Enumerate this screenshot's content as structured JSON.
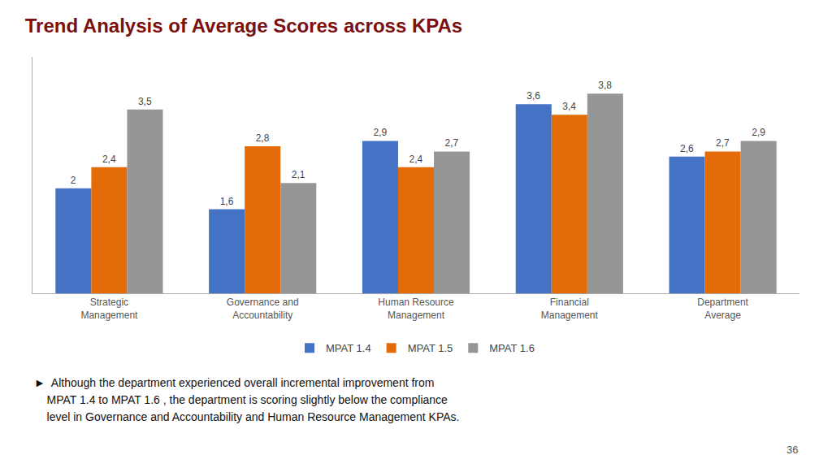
{
  "chart_data": {
    "type": "bar",
    "title": "Trend Analysis of Average Scores across KPAs",
    "categories": [
      "Strategic\nManagement",
      "Governance and\nAccountability",
      "Human Resource\nManagement",
      "Financial\nManagement",
      "Department\nAverage"
    ],
    "series": [
      {
        "name": "MPAT 1.4",
        "color": "#4472C4",
        "values": [
          2.0,
          1.6,
          2.9,
          3.6,
          2.6
        ],
        "value_labels": [
          "2",
          "1,6",
          "2,9",
          "3,6",
          "2,6"
        ]
      },
      {
        "name": "MPAT 1.5",
        "color": "#E36C09",
        "values": [
          2.4,
          2.8,
          2.4,
          3.4,
          2.7
        ],
        "value_labels": [
          "2,4",
          "2,8",
          "2,4",
          "3,4",
          "2,7"
        ]
      },
      {
        "name": "MPAT 1.6",
        "color": "#969696",
        "values": [
          3.5,
          2.1,
          2.7,
          3.8,
          2.9
        ],
        "value_labels": [
          "3,5",
          "2,1",
          "2,7",
          "3,8",
          "2,9"
        ]
      }
    ],
    "ylim": [
      0,
      4.5
    ],
    "grid": false,
    "legend": "bottom",
    "data_labels": true,
    "tick_labels": "x",
    "annotations": [
      "►  Although the department experienced overall incremental improvement from",
      "    MPAT 1.4 to MPAT 1.6 , the department is scoring slightly below the compliance",
      "    level in Governance and Accountability and Human Resource Management KPAs.",
      "36"
    ]
  }
}
